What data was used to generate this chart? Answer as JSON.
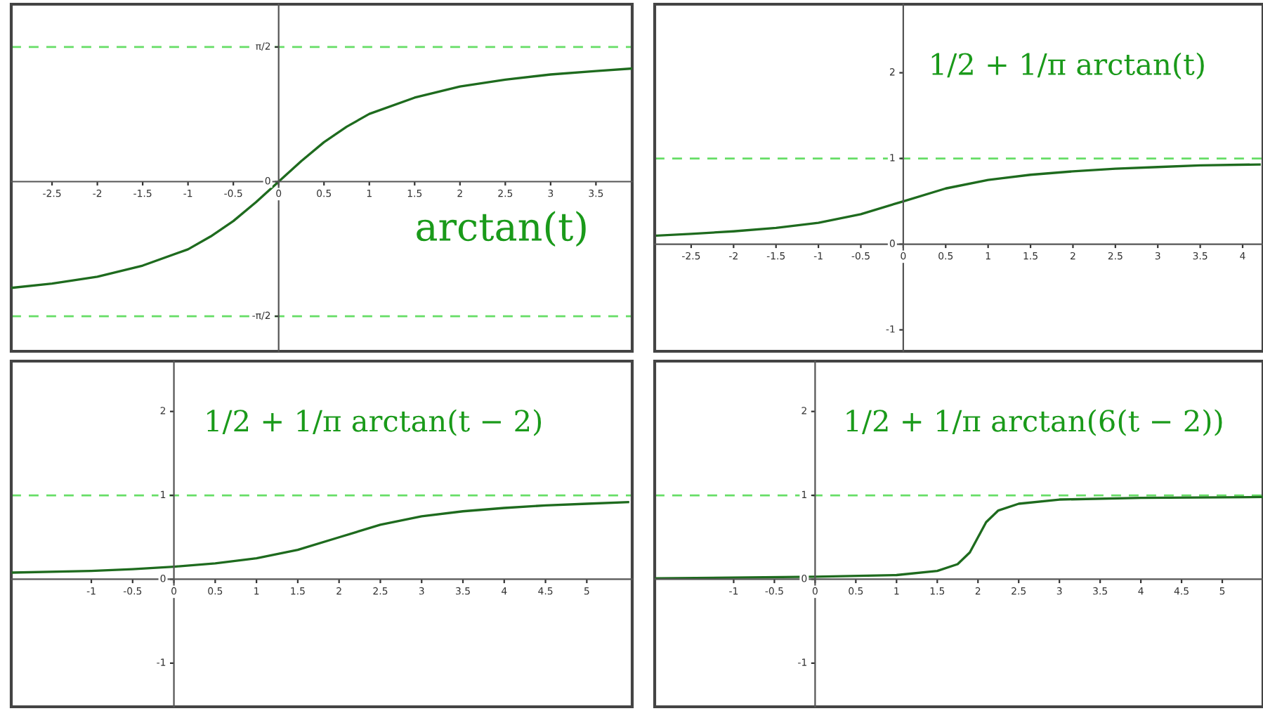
{
  "chart_data": [
    {
      "type": "line",
      "annotations": [
        "arctan(t)"
      ],
      "x": [
        -2.95,
        -2.5,
        -2,
        -1.5,
        -1,
        -0.75,
        -0.5,
        -0.25,
        0,
        0.25,
        0.5,
        0.75,
        1,
        1.5,
        2,
        2.5,
        3,
        3.5,
        3.9
      ],
      "series": [
        {
          "color": "#1e6b1e",
          "values": [
            -1.24,
            -1.19,
            -1.11,
            -0.98,
            -0.79,
            -0.64,
            -0.46,
            -0.24,
            0,
            0.24,
            0.46,
            0.64,
            0.79,
            0.98,
            1.11,
            1.19,
            1.25,
            1.29,
            1.32
          ]
        }
      ],
      "xlim": [
        -2.95,
        3.9
      ],
      "ylim": [
        -1.98,
        2.07
      ],
      "xticks": [
        -2.5,
        -2,
        -1.5,
        -1,
        -0.5,
        0,
        0.5,
        1,
        1.5,
        2,
        2.5,
        3,
        3.5
      ],
      "yticks": [
        {
          "value": -1.5708,
          "label": "-π/2"
        },
        0,
        {
          "value": 1.5708,
          "label": "π/2"
        }
      ],
      "ref_lines": [
        {
          "axis": "y",
          "value": 1.5708,
          "color": "#66dd66",
          "line_style": "dashed"
        },
        {
          "axis": "y",
          "value": -1.5708,
          "color": "#66dd66",
          "line_style": "dashed"
        }
      ],
      "grid": false
    },
    {
      "type": "line",
      "annotations": [
        "1/2 + 1/π arctan(t)"
      ],
      "x": [
        -2.9,
        -2.5,
        -2,
        -1.5,
        -1,
        -0.5,
        0,
        0.5,
        1,
        1.5,
        2,
        2.5,
        3,
        3.5,
        4.2
      ],
      "series": [
        {
          "color": "#1e6b1e",
          "values": [
            0.1,
            0.12,
            0.15,
            0.19,
            0.25,
            0.35,
            0.5,
            0.65,
            0.75,
            0.81,
            0.85,
            0.88,
            0.9,
            0.92,
            0.93
          ]
        }
      ],
      "xlim": [
        -2.93,
        4.24
      ],
      "ylim": [
        -1.25,
        2.8
      ],
      "xticks": [
        -2.5,
        -2,
        -1.5,
        -1,
        -0.5,
        0,
        0.5,
        1,
        1.5,
        2,
        2.5,
        3,
        3.5,
        4
      ],
      "yticks": [
        -1,
        0,
        1,
        2
      ],
      "ref_lines": [
        {
          "axis": "y",
          "value": 1,
          "color": "#66dd66",
          "line_style": "dashed"
        }
      ],
      "grid": false
    },
    {
      "type": "line",
      "annotations": [
        "1/2 + 1/π arctan(t − 2)"
      ],
      "x": [
        -1.95,
        -1,
        -0.5,
        0,
        0.5,
        1,
        1.5,
        2,
        2.5,
        3,
        3.5,
        4,
        4.5,
        5,
        5.5
      ],
      "series": [
        {
          "color": "#1e6b1e",
          "values": [
            0.08,
            0.1,
            0.12,
            0.15,
            0.19,
            0.25,
            0.35,
            0.5,
            0.65,
            0.75,
            0.81,
            0.85,
            0.88,
            0.9,
            0.92
          ]
        }
      ],
      "xlim": [
        -1.97,
        5.55
      ],
      "ylim": [
        -1.52,
        2.6
      ],
      "xticks": [
        -1,
        -0.5,
        0,
        0.5,
        1,
        1.5,
        2,
        2.5,
        3,
        3.5,
        4,
        4.5,
        5
      ],
      "yticks": [
        -1,
        0,
        1,
        2
      ],
      "ref_lines": [
        {
          "axis": "y",
          "value": 1,
          "color": "#66dd66",
          "line_style": "dashed"
        }
      ],
      "grid": false
    },
    {
      "type": "line",
      "annotations": [
        "1/2 + 1/π arctan(6(t − 2))"
      ],
      "x": [
        -1.95,
        0,
        1,
        1.5,
        1.75,
        1.9,
        2,
        2.1,
        2.25,
        2.5,
        3,
        4,
        5.5
      ],
      "series": [
        {
          "color": "#1e6b1e",
          "values": [
            0.01,
            0.03,
            0.05,
            0.1,
            0.18,
            0.32,
            0.5,
            0.68,
            0.82,
            0.9,
            0.95,
            0.97,
            0.98
          ]
        }
      ],
      "xlim": [
        -1.97,
        5.5
      ],
      "ylim": [
        -1.52,
        2.6
      ],
      "xticks": [
        -1,
        -0.5,
        0,
        0.5,
        1,
        1.5,
        2,
        2.5,
        3,
        3.5,
        4,
        4.5,
        5
      ],
      "yticks": [
        -1,
        0,
        1,
        2
      ],
      "ref_lines": [
        {
          "axis": "y",
          "value": 1,
          "color": "#66dd66",
          "line_style": "dashed"
        }
      ],
      "grid": false
    }
  ]
}
